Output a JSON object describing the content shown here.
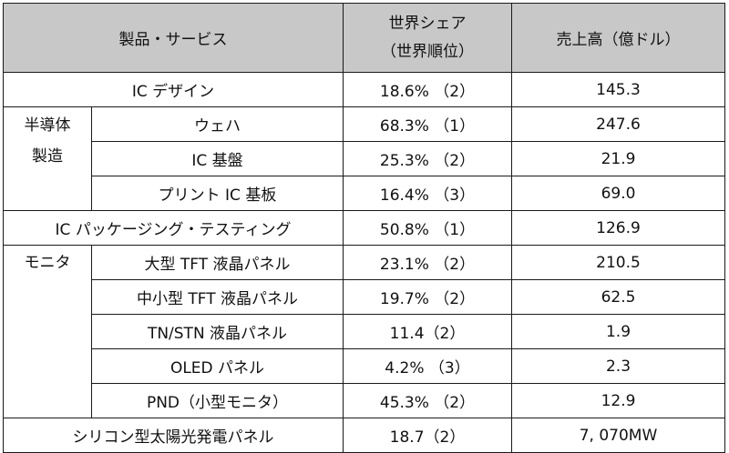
{
  "header": {
    "product": "製品・サービス",
    "share_line1": "世界シェア",
    "share_line2": "（世界順位）",
    "sales": "売上高（億ドル）"
  },
  "categories": {
    "semiconductor_line1": "半導体",
    "semiconductor_line2": "製造",
    "monitor": "モニタ"
  },
  "rows": [
    {
      "name": "IC デザイン",
      "share": "18.6% （2）",
      "sales": "145.3"
    },
    {
      "name": "ウェハ",
      "share": "68.3% （1）",
      "sales": "247.6"
    },
    {
      "name": "IC 基盤",
      "share": "25.3% （2）",
      "sales": "21.9"
    },
    {
      "name": "プリント IC 基板",
      "share": "16.4% （3）",
      "sales": "69.0"
    },
    {
      "name": "IC パッケージング・テスティング",
      "share": "50.8% （1）",
      "sales": "126.9"
    },
    {
      "name": "大型 TFT 液晶パネル",
      "share": "23.1% （2）",
      "sales": "210.5"
    },
    {
      "name": "中小型 TFT 液晶パネル",
      "share": "19.7% （2）",
      "sales": "62.5"
    },
    {
      "name": "TN/STN 液晶パネル",
      "share": "11.4（2）",
      "sales": "1.9"
    },
    {
      "name": "OLED パネル",
      "share": "4.2% （3）",
      "sales": "2.3"
    },
    {
      "name": "PND（小型モニタ）",
      "share": "45.3% （2）",
      "sales": "12.9"
    },
    {
      "name": "シリコン型太陽光発電パネル",
      "share": "18.7（2）",
      "sales": "7, 070MW"
    }
  ]
}
